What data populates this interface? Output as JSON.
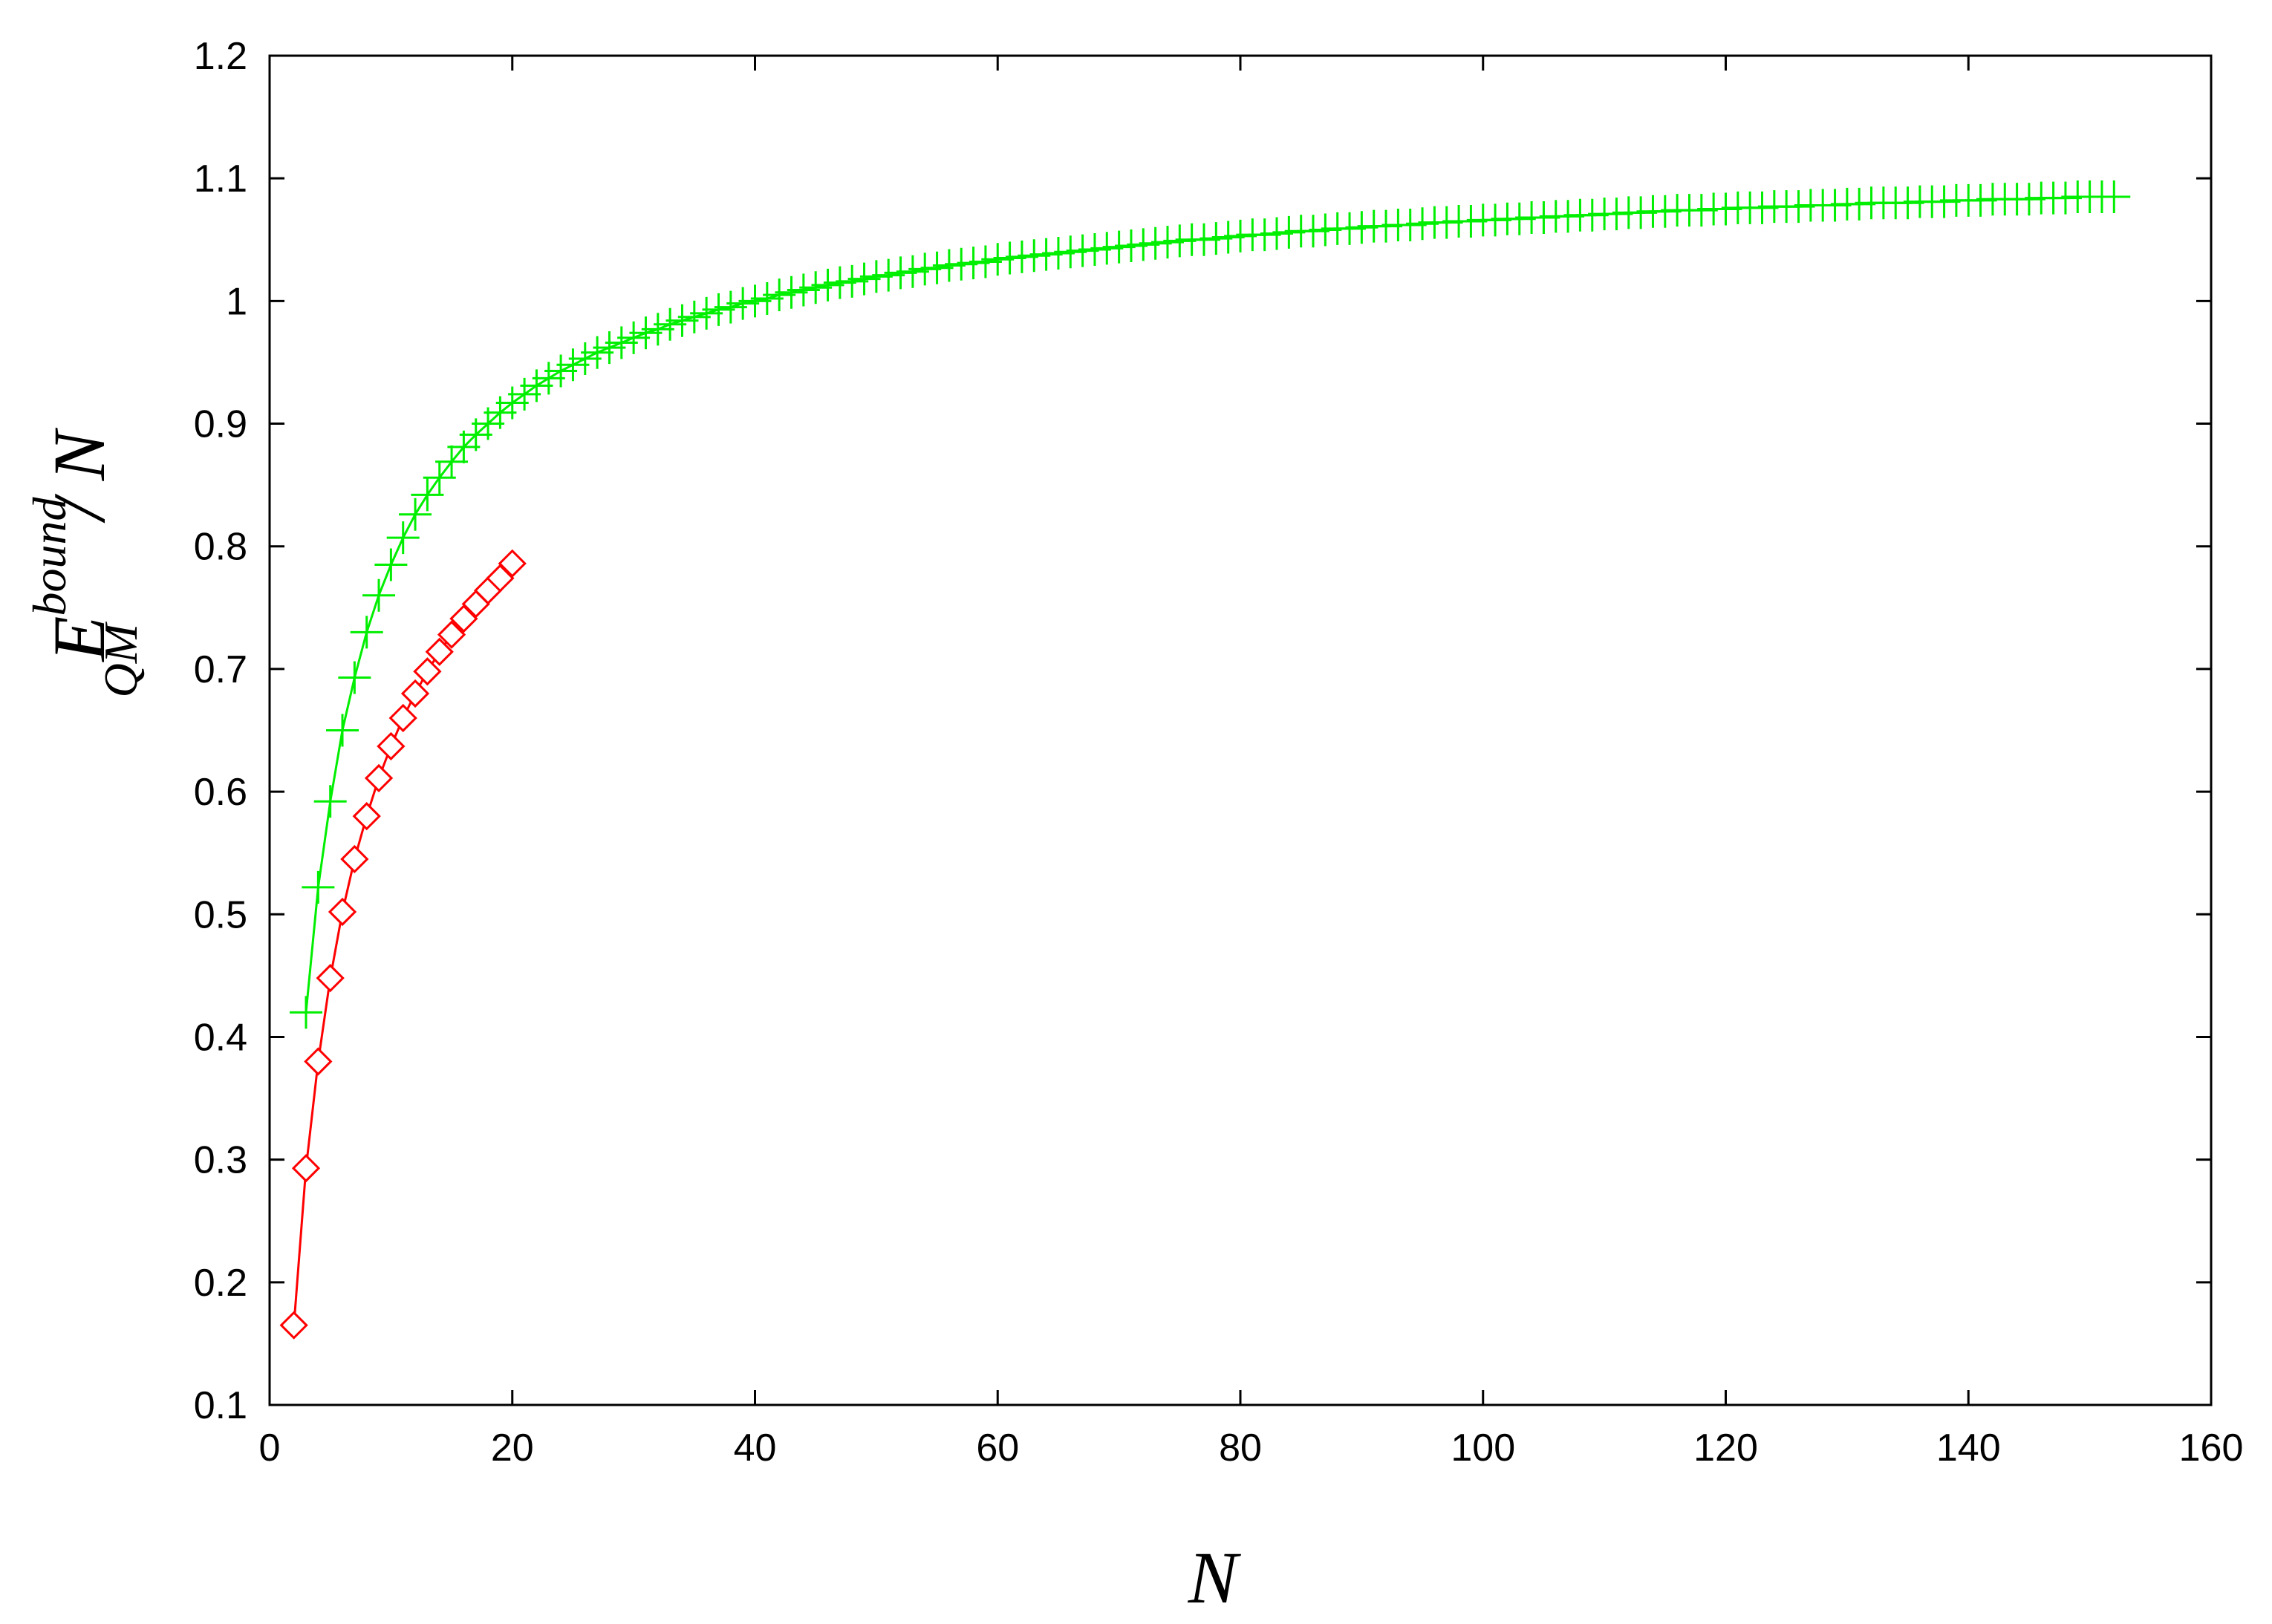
{
  "chart_data": {
    "type": "line",
    "title": "",
    "xlabel": "N",
    "ylabel": {
      "base": "E",
      "superscript": "bound",
      "subscript": "QM",
      "suffix": "/ N"
    },
    "xlim": [
      0,
      160
    ],
    "ylim": [
      0.1,
      1.2
    ],
    "xticks": [
      "0",
      "20",
      "40",
      "60",
      "80",
      "100",
      "120",
      "140",
      "160"
    ],
    "yticks": [
      "0.1",
      "0.2",
      "0.3",
      "0.4",
      "0.5",
      "0.6",
      "0.7",
      "0.8",
      "0.9",
      "1",
      "1.1",
      "1.2"
    ],
    "grid": false,
    "legend": "none",
    "series": [
      {
        "color": "#00ee00",
        "marker": "plus",
        "x": [
          3,
          4,
          5,
          6,
          7,
          8,
          9,
          10,
          11,
          12,
          13,
          14,
          15,
          16,
          17,
          18,
          19,
          20,
          21,
          22,
          23,
          24,
          25,
          26,
          27,
          28,
          29,
          30,
          31,
          32,
          33,
          34,
          35,
          36,
          37,
          38,
          39,
          40,
          41,
          42,
          43,
          44,
          45,
          46,
          47,
          48,
          49,
          50,
          51,
          52,
          53,
          54,
          55,
          56,
          57,
          58,
          59,
          60,
          61,
          62,
          63,
          64,
          65,
          66,
          67,
          68,
          69,
          70,
          71,
          72,
          73,
          74,
          75,
          76,
          77,
          78,
          79,
          80,
          81,
          82,
          83,
          84,
          85,
          86,
          87,
          88,
          89,
          90,
          91,
          92,
          93,
          94,
          95,
          96,
          97,
          98,
          99,
          100,
          101,
          102,
          103,
          104,
          105,
          106,
          107,
          108,
          109,
          110,
          111,
          112,
          113,
          114,
          115,
          116,
          117,
          118,
          119,
          120,
          121,
          122,
          123,
          124,
          125,
          126,
          127,
          128,
          129,
          130,
          131,
          132,
          133,
          134,
          135,
          136,
          137,
          138,
          139,
          140,
          141,
          142,
          143,
          144,
          145,
          146,
          147,
          148,
          149,
          150,
          151,
          152
        ],
        "y": [
          0.42,
          0.522,
          0.592,
          0.65,
          0.693,
          0.73,
          0.76,
          0.785,
          0.807,
          0.826,
          0.842,
          0.856,
          0.869,
          0.881,
          0.891,
          0.9,
          0.909,
          0.917,
          0.924,
          0.931,
          0.937,
          0.943,
          0.948,
          0.953,
          0.958,
          0.962,
          0.966,
          0.97,
          0.974,
          0.977,
          0.981,
          0.984,
          0.987,
          0.99,
          0.993,
          0.995,
          0.998,
          1.0,
          1.002,
          1.005,
          1.007,
          1.009,
          1.011,
          1.013,
          1.015,
          1.016,
          1.018,
          1.02,
          1.021,
          1.023,
          1.024,
          1.026,
          1.027,
          1.029,
          1.03,
          1.031,
          1.032,
          1.034,
          1.035,
          1.036,
          1.037,
          1.038,
          1.039,
          1.04,
          1.041,
          1.042,
          1.043,
          1.044,
          1.045,
          1.046,
          1.047,
          1.048,
          1.049,
          1.05,
          1.05,
          1.051,
          1.052,
          1.053,
          1.054,
          1.054,
          1.055,
          1.056,
          1.057,
          1.057,
          1.058,
          1.059,
          1.059,
          1.06,
          1.061,
          1.061,
          1.062,
          1.062,
          1.063,
          1.064,
          1.064,
          1.065,
          1.065,
          1.066,
          1.066,
          1.067,
          1.067,
          1.068,
          1.068,
          1.069,
          1.069,
          1.07,
          1.07,
          1.071,
          1.071,
          1.072,
          1.072,
          1.073,
          1.073,
          1.074,
          1.074,
          1.074,
          1.075,
          1.075,
          1.076,
          1.076,
          1.076,
          1.077,
          1.077,
          1.077,
          1.078,
          1.078,
          1.078,
          1.079,
          1.079,
          1.08,
          1.08,
          1.08,
          1.08,
          1.081,
          1.081,
          1.081,
          1.082,
          1.082,
          1.082,
          1.083,
          1.083,
          1.083,
          1.083,
          1.084,
          1.084,
          1.084,
          1.085,
          1.085,
          1.085,
          1.085
        ]
      },
      {
        "color": "#ff0000",
        "marker": "diamond",
        "x": [
          2,
          3,
          4,
          5,
          6,
          7,
          8,
          9,
          10,
          11,
          12,
          13,
          14,
          15,
          16,
          17,
          18,
          19,
          20
        ],
        "y": [
          0.165,
          0.293,
          0.38,
          0.448,
          0.502,
          0.545,
          0.58,
          0.611,
          0.637,
          0.66,
          0.68,
          0.698,
          0.714,
          0.728,
          0.741,
          0.753,
          0.764,
          0.774,
          0.786
        ]
      }
    ]
  }
}
